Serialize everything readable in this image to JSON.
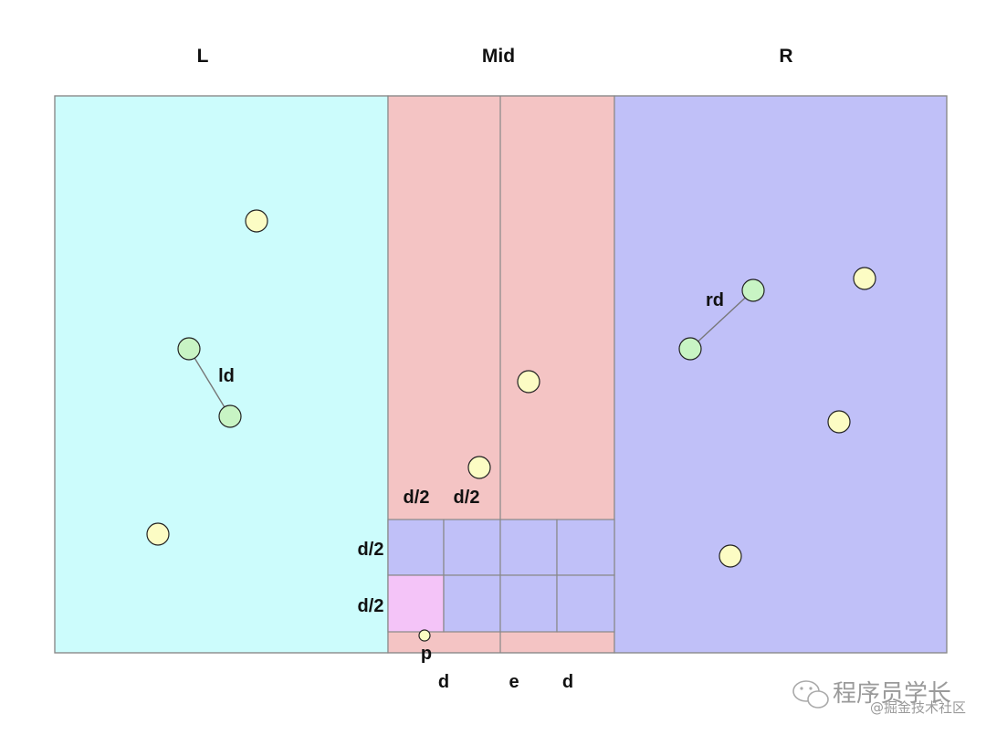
{
  "diagram": {
    "regions": {
      "left": {
        "label": "L",
        "color": "#ccfcfc"
      },
      "mid": {
        "label": "Mid",
        "color": "#f4c4c4"
      },
      "right": {
        "label": "R",
        "color": "#c0c0f8"
      }
    },
    "strip_labels": {
      "half_width_left": "d/2",
      "half_width_right": "d/2",
      "half_height_top": "d/2",
      "half_height_bottom": "d/2",
      "bottom_left": "d",
      "bottom_center": "e",
      "bottom_right": "d"
    },
    "distance_labels": {
      "left": "ld",
      "right": "rd"
    },
    "point_label": "p",
    "colors": {
      "point": "#fcfcc4",
      "closest_pair": "#c8f4c4",
      "grid_cell": "#c0c0f8",
      "highlight_cell": "#f4c4f8",
      "border": "#888888",
      "connector": "#777777"
    }
  },
  "watermark": {
    "line1": "程序员学长",
    "line2": "@掘金技术社区"
  }
}
